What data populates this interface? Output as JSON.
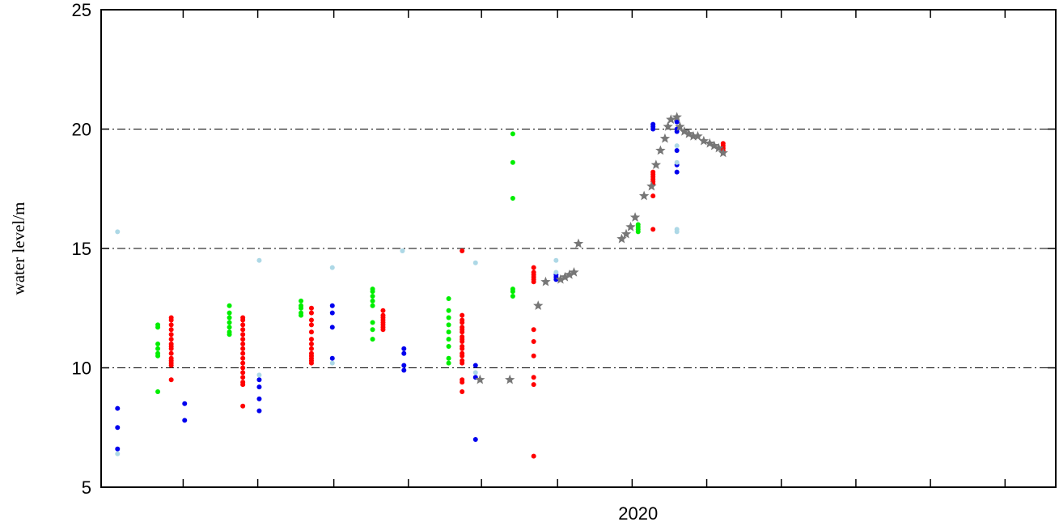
{
  "chart_data": {
    "type": "scatter",
    "title": "",
    "xlabel": "",
    "ylabel": "water level/m",
    "ylim": [
      5,
      25
    ],
    "xlim": [
      2018.2,
      2021.4
    ],
    "y_ticks": [
      5,
      10,
      15,
      20,
      25
    ],
    "x_ticks_labeled": [
      {
        "value": 2020.0,
        "label": "2020"
      }
    ],
    "x_minor_ticks": [
      2018.475,
      2018.725,
      2018.98,
      2019.23,
      2019.475,
      2019.73,
      2019.98,
      2020.23,
      2020.48,
      2020.73,
      2020.98,
      2021.23
    ],
    "grid_y": [
      10,
      15,
      20
    ],
    "legend": "none",
    "series": [
      {
        "color": "#0000ee",
        "marker": "dot",
        "x": [
          2018.255,
          2018.255,
          2018.255,
          2018.48,
          2018.48,
          2018.73,
          2018.73,
          2018.73,
          2018.73,
          2018.975,
          2018.975,
          2018.975,
          2018.975,
          2019.215,
          2019.215,
          2019.215,
          2019.215,
          2019.455,
          2019.455,
          2019.455,
          2019.725,
          2019.725,
          2019.725,
          2020.05,
          2020.05,
          2020.05,
          2020.13,
          2020.13,
          2020.13,
          2020.13,
          2020.13,
          2020.13
        ],
        "y": [
          8.3,
          7.5,
          6.6,
          8.5,
          7.8,
          9.2,
          8.7,
          8.2,
          9.5,
          12.6,
          12.3,
          11.7,
          10.4,
          10.8,
          10.6,
          10.1,
          9.9,
          10.1,
          9.6,
          7.0,
          13.9,
          13.8,
          13.7,
          20.2,
          20.1,
          20.0,
          19.1,
          18.5,
          18.2,
          20.3,
          20.0,
          19.9
        ]
      },
      {
        "color": "#00ee00",
        "marker": "dot",
        "x": [
          2018.39,
          2018.39,
          2018.39,
          2018.39,
          2018.39,
          2018.39,
          2018.39,
          2018.63,
          2018.63,
          2018.63,
          2018.63,
          2018.63,
          2018.63,
          2018.63,
          2018.87,
          2018.87,
          2018.87,
          2018.87,
          2018.87,
          2019.11,
          2019.11,
          2019.11,
          2019.11,
          2019.11,
          2019.11,
          2019.11,
          2019.11,
          2019.365,
          2019.365,
          2019.365,
          2019.365,
          2019.365,
          2019.365,
          2019.365,
          2019.365,
          2019.365,
          2019.58,
          2019.58,
          2019.58,
          2019.58,
          2019.58,
          2019.58,
          2020.0,
          2020.0,
          2020.0,
          2020.0
        ],
        "y": [
          11.8,
          11.7,
          11.0,
          10.8,
          10.6,
          10.5,
          9.0,
          12.6,
          12.3,
          12.1,
          11.9,
          11.7,
          11.5,
          11.4,
          12.8,
          12.6,
          12.5,
          12.3,
          12.2,
          13.3,
          13.2,
          13.0,
          12.8,
          12.6,
          11.9,
          11.6,
          11.2,
          12.9,
          12.4,
          12.1,
          11.8,
          11.5,
          11.2,
          10.9,
          10.4,
          10.2,
          19.8,
          18.6,
          17.1,
          13.3,
          13.2,
          13.0,
          16.0,
          15.9,
          15.8,
          15.7
        ]
      },
      {
        "color": "#ff0000",
        "marker": "dot",
        "x": [
          2018.435,
          2018.435,
          2018.435,
          2018.435,
          2018.435,
          2018.435,
          2018.435,
          2018.435,
          2018.435,
          2018.435,
          2018.435,
          2018.435,
          2018.435,
          2018.435,
          2018.435,
          2018.675,
          2018.675,
          2018.675,
          2018.675,
          2018.675,
          2018.675,
          2018.675,
          2018.675,
          2018.675,
          2018.675,
          2018.675,
          2018.675,
          2018.675,
          2018.675,
          2018.675,
          2018.675,
          2018.675,
          2018.905,
          2018.905,
          2018.905,
          2018.905,
          2018.905,
          2018.905,
          2018.905,
          2018.905,
          2018.905,
          2018.905,
          2018.905,
          2018.905,
          2018.905,
          2019.145,
          2019.145,
          2019.145,
          2019.145,
          2019.145,
          2019.145,
          2019.145,
          2019.145,
          2019.41,
          2019.41,
          2019.41,
          2019.41,
          2019.41,
          2019.41,
          2019.41,
          2019.41,
          2019.41,
          2019.41,
          2019.41,
          2019.41,
          2019.41,
          2019.41,
          2019.41,
          2019.41,
          2019.41,
          2019.41,
          2019.41,
          2019.65,
          2019.65,
          2019.65,
          2019.65,
          2019.65,
          2019.65,
          2019.65,
          2019.65,
          2019.65,
          2019.65,
          2019.65,
          2019.65,
          2020.05,
          2020.05,
          2020.05,
          2020.05,
          2020.05,
          2020.05,
          2020.05,
          2020.05,
          2020.285,
          2020.285,
          2020.285,
          2020.285,
          2020.285
        ],
        "y": [
          12.1,
          12.0,
          11.8,
          11.6,
          11.4,
          11.2,
          11.0,
          10.9,
          10.8,
          10.6,
          10.4,
          10.3,
          10.2,
          10.1,
          9.5,
          12.1,
          12.0,
          11.8,
          11.6,
          11.4,
          11.2,
          11.0,
          10.8,
          10.6,
          10.4,
          10.2,
          10.0,
          9.8,
          9.6,
          9.4,
          9.3,
          8.4,
          12.5,
          12.3,
          12.0,
          11.8,
          11.5,
          11.2,
          11.0,
          10.8,
          10.6,
          10.5,
          10.4,
          10.3,
          10.2,
          12.4,
          12.2,
          12.1,
          12.0,
          11.9,
          11.8,
          11.7,
          11.6,
          14.9,
          12.2,
          12.0,
          11.9,
          11.7,
          11.6,
          11.5,
          11.3,
          11.2,
          11.1,
          10.9,
          10.8,
          10.6,
          10.5,
          10.3,
          10.2,
          9.5,
          9.4,
          9.0,
          14.2,
          14.0,
          13.9,
          13.8,
          13.7,
          13.6,
          11.6,
          11.1,
          10.5,
          9.6,
          9.3,
          6.3,
          18.2,
          18.1,
          18.0,
          17.9,
          17.8,
          17.7,
          17.2,
          15.8,
          19.4,
          19.3,
          19.2,
          19.1,
          19.0
        ]
      },
      {
        "color": "#add8e6",
        "marker": "dot",
        "x": [
          2018.255,
          2018.255,
          2018.73,
          2018.73,
          2018.975,
          2018.975,
          2019.21,
          2019.455,
          2019.455,
          2019.725,
          2019.725,
          2020.13,
          2020.13,
          2020.13,
          2020.13
        ],
        "y": [
          15.7,
          6.4,
          14.5,
          9.7,
          14.2,
          10.2,
          14.9,
          14.4,
          9.8,
          14.5,
          14.0,
          19.3,
          18.6,
          15.8,
          15.7
        ]
      },
      {
        "color": "#777777",
        "marker": "star",
        "x": [
          2019.47,
          2019.57,
          2019.665,
          2019.69,
          2019.74,
          2019.755,
          2019.77,
          2019.785,
          2019.8,
          2019.945,
          2019.96,
          2019.975,
          2019.99,
          2020.02,
          2020.045,
          2020.06,
          2020.075,
          2020.09,
          2020.1,
          2020.11,
          2020.13,
          2020.14,
          2020.155,
          2020.17,
          2020.185,
          2020.2,
          2020.22,
          2020.24,
          2020.255,
          2020.27,
          2020.285
        ],
        "y": [
          9.5,
          9.5,
          12.6,
          13.6,
          13.7,
          13.8,
          13.9,
          14.0,
          15.2,
          15.4,
          15.6,
          15.9,
          16.3,
          17.2,
          17.6,
          18.5,
          19.1,
          19.6,
          20.1,
          20.4,
          20.5,
          20.1,
          19.9,
          19.8,
          19.7,
          19.7,
          19.5,
          19.4,
          19.3,
          19.2,
          19.0
        ]
      }
    ]
  }
}
